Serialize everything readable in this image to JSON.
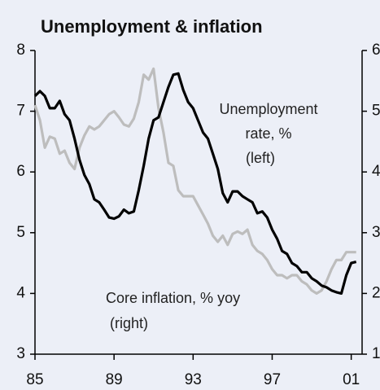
{
  "chart_data": {
    "type": "line",
    "title": "Unemployment & inflation",
    "annotations": [
      "Unemployment",
      "rate, %",
      "(left)",
      "Core inflation, % yoy",
      "(right)"
    ],
    "x": [
      1985,
      1985.25,
      1985.5,
      1985.75,
      1986,
      1986.25,
      1986.5,
      1986.75,
      1987,
      1987.25,
      1987.5,
      1987.75,
      1988,
      1988.25,
      1988.5,
      1988.75,
      1989,
      1989.25,
      1989.5,
      1989.75,
      1990,
      1990.25,
      1990.5,
      1990.75,
      1991,
      1991.25,
      1991.5,
      1991.75,
      1992,
      1992.25,
      1992.5,
      1992.75,
      1993,
      1993.25,
      1993.5,
      1993.75,
      1994,
      1994.25,
      1994.5,
      1994.75,
      1995,
      1995.25,
      1995.5,
      1995.75,
      1996,
      1996.25,
      1996.5,
      1996.75,
      1997,
      1997.25,
      1997.5,
      1997.75,
      1998,
      1998.25,
      1998.5,
      1998.75,
      1999,
      1999.25,
      1999.5,
      1999.75,
      2000,
      2000.25,
      2000.5,
      2000.75,
      2001,
      2001.25
    ],
    "series": [
      {
        "name": "Unemployment rate, %",
        "color": "#000000",
        "axis": "y",
        "values": [
          7.25,
          7.33,
          7.25,
          7.05,
          7.05,
          7.17,
          6.95,
          6.85,
          6.55,
          6.2,
          5.95,
          5.8,
          5.55,
          5.5,
          5.38,
          5.25,
          5.23,
          5.27,
          5.38,
          5.32,
          5.35,
          5.7,
          6.1,
          6.55,
          6.85,
          6.9,
          7.15,
          7.4,
          7.6,
          7.62,
          7.35,
          7.15,
          7.05,
          6.85,
          6.65,
          6.55,
          6.3,
          6.05,
          5.65,
          5.5,
          5.68,
          5.68,
          5.6,
          5.55,
          5.5,
          5.32,
          5.35,
          5.25,
          5.05,
          4.9,
          4.7,
          4.65,
          4.5,
          4.45,
          4.35,
          4.35,
          4.25,
          4.2,
          4.13,
          4.1,
          4.05,
          4.02,
          4.0,
          4.3,
          4.5,
          4.52
        ]
      },
      {
        "name": "Core inflation, % yoy",
        "color": "#bdbdbd",
        "axis": "y2",
        "values": [
          5.1,
          4.85,
          4.4,
          4.58,
          4.55,
          4.3,
          4.35,
          4.15,
          4.05,
          4.4,
          4.6,
          4.75,
          4.7,
          4.75,
          4.85,
          4.95,
          5.0,
          4.9,
          4.78,
          4.75,
          4.88,
          5.15,
          5.6,
          5.52,
          5.7,
          5.05,
          4.65,
          4.15,
          4.1,
          3.7,
          3.6,
          3.6,
          3.6,
          3.45,
          3.3,
          3.15,
          2.95,
          2.85,
          2.95,
          2.8,
          2.98,
          3.02,
          2.98,
          3.05,
          2.8,
          2.7,
          2.65,
          2.55,
          2.4,
          2.3,
          2.3,
          2.25,
          2.3,
          2.3,
          2.2,
          2.15,
          2.05,
          2.0,
          2.05,
          2.2,
          2.4,
          2.55,
          2.55,
          2.68,
          2.68,
          2.68
        ]
      }
    ],
    "xlim": [
      1985,
      2001.55
    ],
    "xticks": [
      {
        "value": 1985,
        "label": "85"
      },
      {
        "value": 1989,
        "label": "89"
      },
      {
        "value": 1993,
        "label": "93"
      },
      {
        "value": 1997,
        "label": "97"
      },
      {
        "value": 2001,
        "label": "01"
      }
    ],
    "ylim": [
      3,
      8
    ],
    "yticks": [
      3,
      4,
      5,
      6,
      7,
      8
    ],
    "y2lim": [
      1,
      6
    ],
    "y2ticks": [
      1,
      2,
      3,
      4,
      5,
      6
    ]
  }
}
